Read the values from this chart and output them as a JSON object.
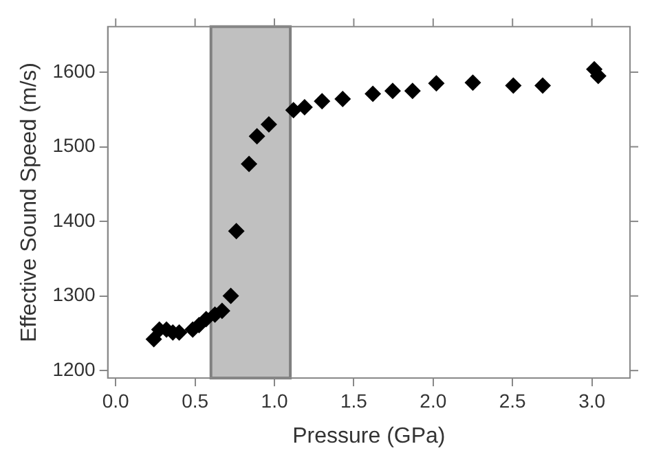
{
  "chart_data": {
    "type": "scatter",
    "xlabel": "Pressure (GPa)",
    "ylabel": "Effective Sound Speed (m/s)",
    "x": [
      0.24,
      0.275,
      0.32,
      0.36,
      0.4,
      0.485,
      0.525,
      0.57,
      0.625,
      0.67,
      0.725,
      0.76,
      0.84,
      0.89,
      0.965,
      1.12,
      1.19,
      1.3,
      1.43,
      1.62,
      1.745,
      1.87,
      2.02,
      2.25,
      2.505,
      2.69,
      3.015,
      3.04
    ],
    "series": [
      {
        "color": "#000000",
        "values": [
          1242,
          1255,
          1255,
          1251,
          1251,
          1255,
          1261,
          1269,
          1275,
          1280,
          1300,
          1387,
          1477,
          1514,
          1530,
          1549,
          1553,
          1561,
          1564,
          1571,
          1575,
          1575,
          1585,
          1586,
          1582,
          1582,
          1604,
          1595
        ]
      }
    ],
    "xlim": [
      -0.05,
      3.24
    ],
    "ylim": [
      1190,
      1661
    ],
    "xticks": [
      {
        "value": 0,
        "label": "0.0"
      },
      {
        "value": 0.5,
        "label": "0.5"
      },
      {
        "value": 1,
        "label": "1.0"
      },
      {
        "value": 1.5,
        "label": "1.5"
      },
      {
        "value": 2,
        "label": "2.0"
      },
      {
        "value": 2.5,
        "label": "2.5"
      },
      {
        "value": 3,
        "label": "3.0"
      }
    ],
    "yticks": [
      1200,
      1300,
      1400,
      1500,
      1600
    ],
    "bands": [
      {
        "axis": "x",
        "from": 0.6,
        "to": 1.1,
        "color": "#c0c0c0"
      }
    ],
    "grid": false,
    "legend": false,
    "marker": "diamond"
  }
}
